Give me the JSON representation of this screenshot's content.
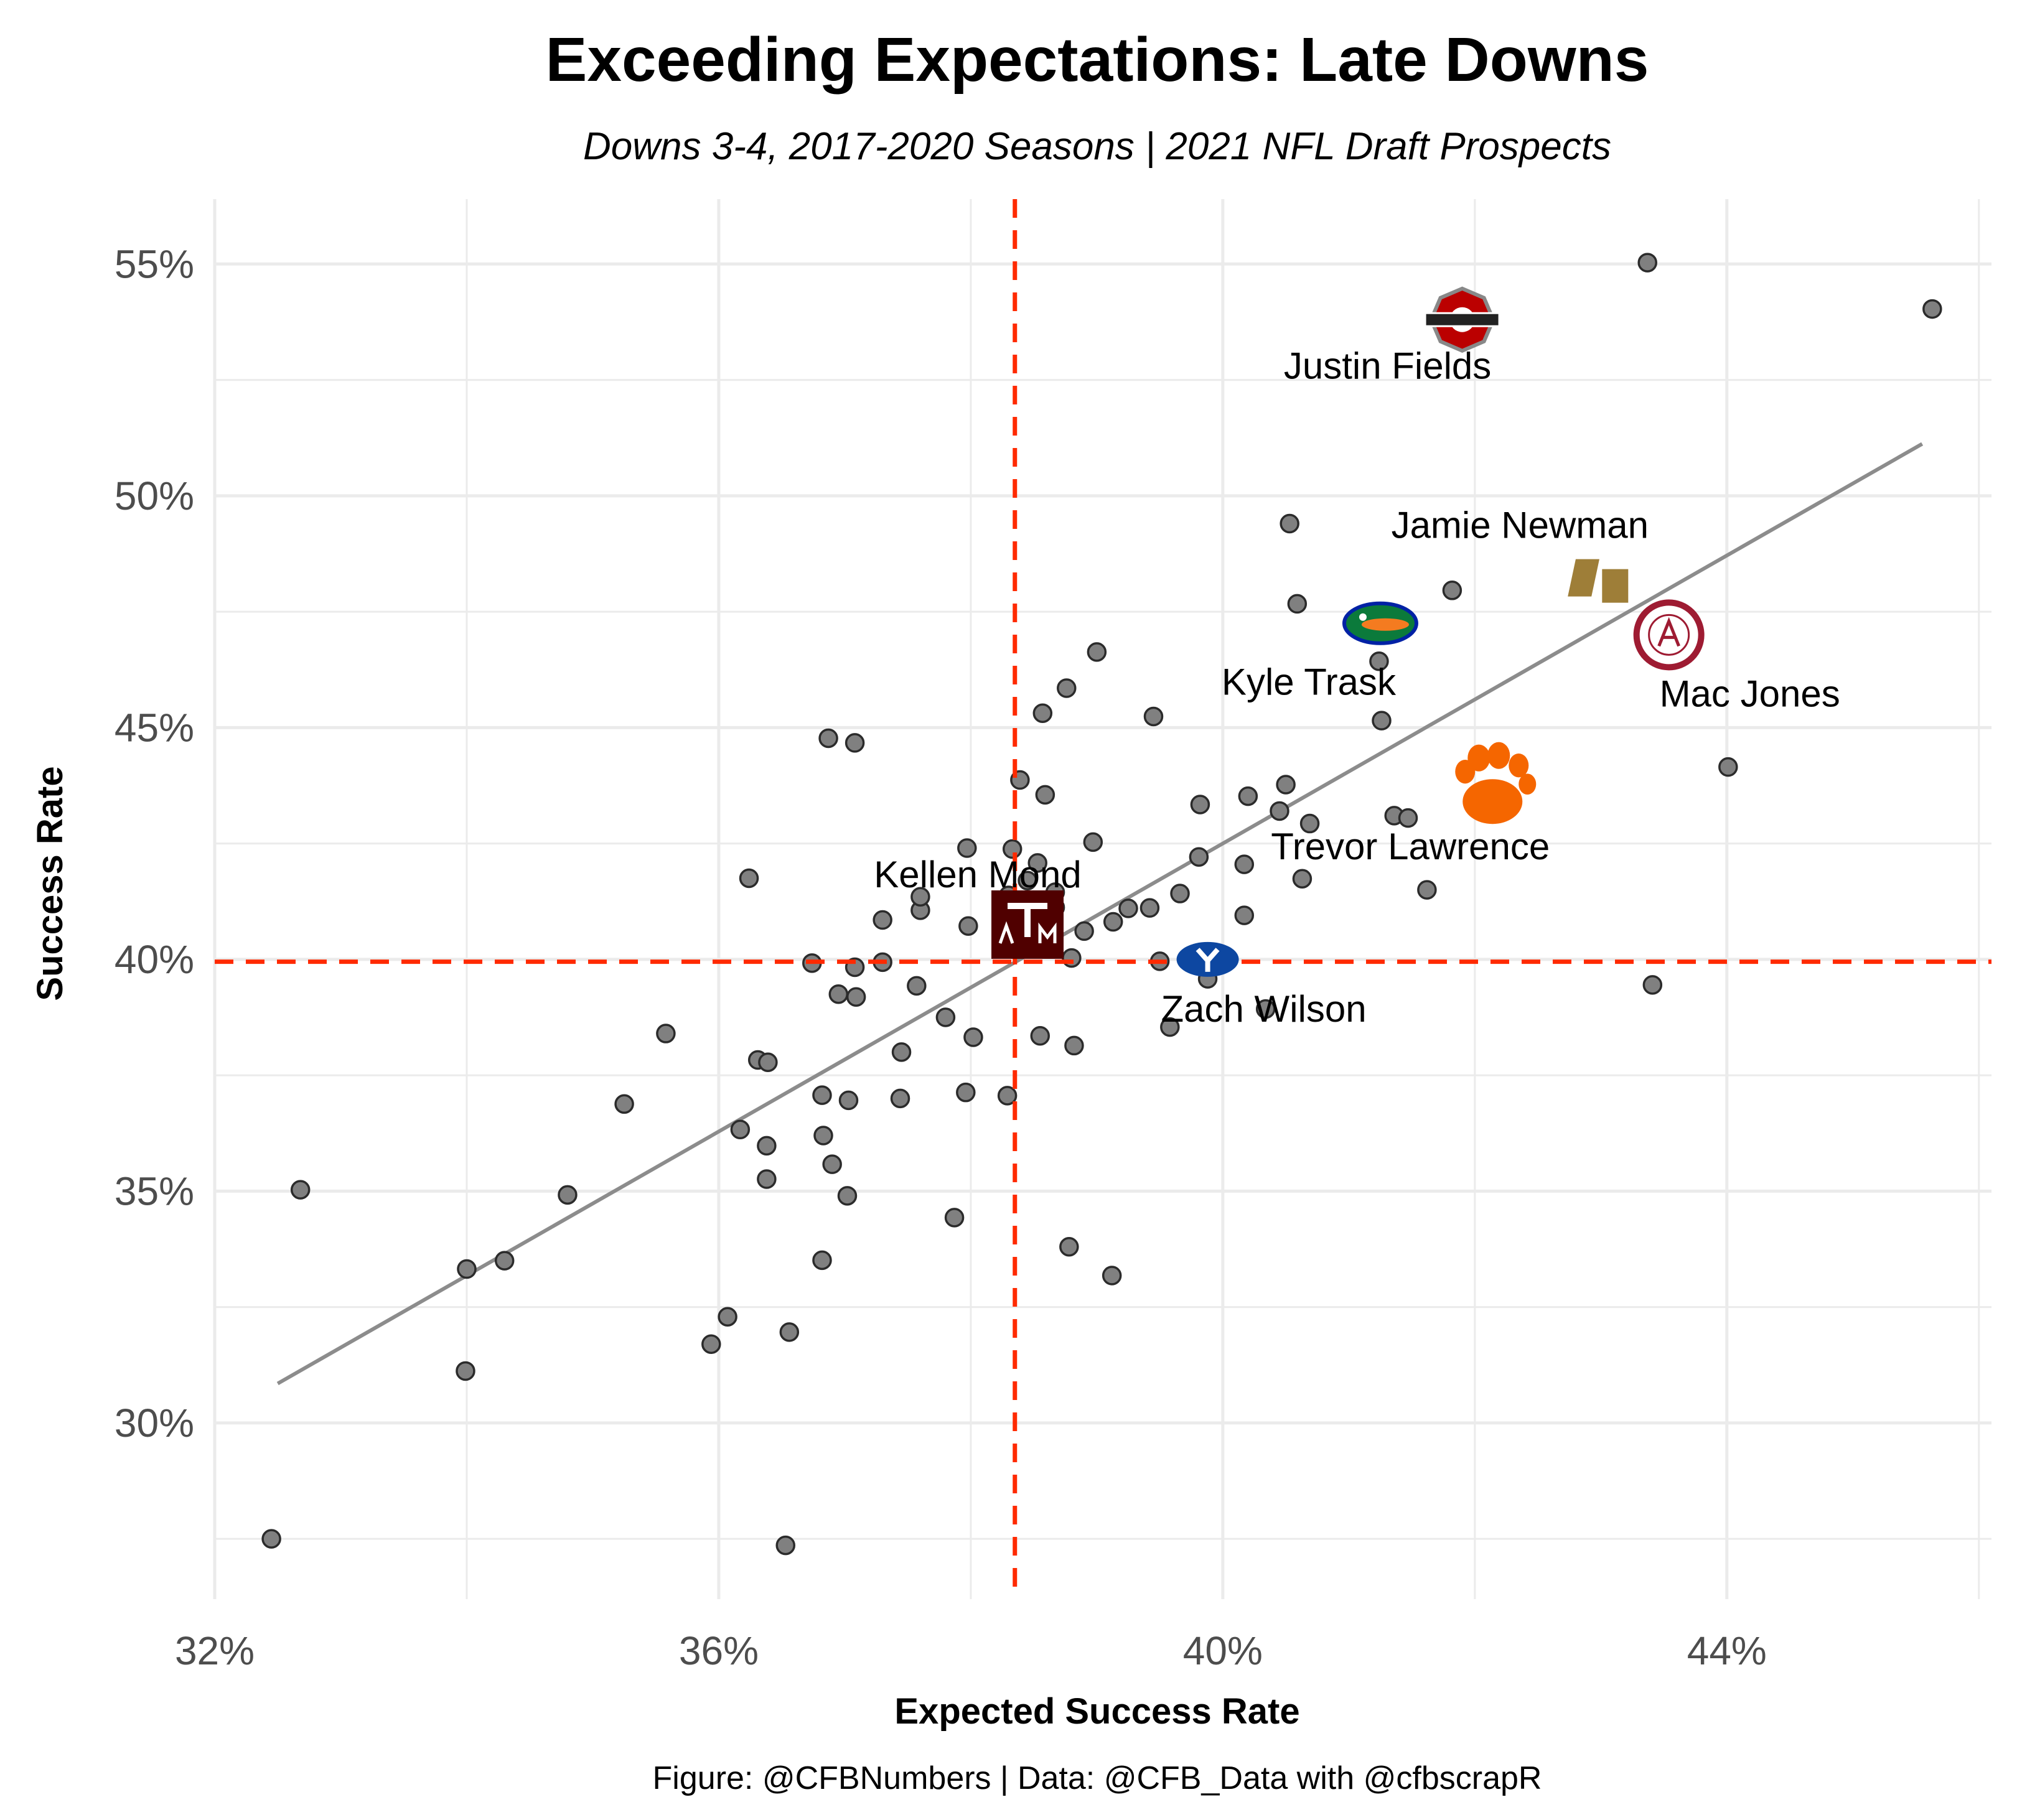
{
  "chart_data": {
    "type": "scatter",
    "title": "Exceeding Expectations: Late Downs",
    "subtitle": "Downs 3-4, 2017-2020 Seasons | 2021 NFL Draft Prospects",
    "xlabel": "Expected Success Rate",
    "ylabel": "Success Rate",
    "caption": "Figure: @CFBNumbers | Data: @CFB_Data with @cfbscrapR",
    "xlim": [
      0.32,
      0.461
    ],
    "ylim": [
      0.262,
      0.564
    ],
    "x_ticks": [
      0.32,
      0.36,
      0.4,
      0.44
    ],
    "x_tick_labels": [
      "32%",
      "36%",
      "40%",
      "44%"
    ],
    "y_ticks": [
      0.3,
      0.35,
      0.4,
      0.45,
      0.5,
      0.55
    ],
    "y_tick_labels": [
      "30%",
      "35%",
      "40%",
      "45%",
      "50%",
      "55%"
    ],
    "grid": true,
    "reference_lines": {
      "x": 0.3835,
      "y": 0.3995,
      "color": "#ff2a00",
      "style": "dashed"
    },
    "trend_line": {
      "x": [
        0.325,
        0.4555
      ],
      "y": [
        0.3085,
        0.5112
      ],
      "color": "#8c8c8c"
    },
    "points": [
      {
        "x": 0.3245,
        "y": 0.275
      },
      {
        "x": 0.3268,
        "y": 0.3503
      },
      {
        "x": 0.34,
        "y": 0.3332
      },
      {
        "x": 0.3399,
        "y": 0.3112
      },
      {
        "x": 0.343,
        "y": 0.335
      },
      {
        "x": 0.348,
        "y": 0.3492
      },
      {
        "x": 0.3525,
        "y": 0.3688
      },
      {
        "x": 0.3558,
        "y": 0.384
      },
      {
        "x": 0.3594,
        "y": 0.317
      },
      {
        "x": 0.3607,
        "y": 0.3229
      },
      {
        "x": 0.3617,
        "y": 0.3633
      },
      {
        "x": 0.3624,
        "y": 0.4175
      },
      {
        "x": 0.3631,
        "y": 0.3783
      },
      {
        "x": 0.3639,
        "y": 0.3778
      },
      {
        "x": 0.3638,
        "y": 0.3598
      },
      {
        "x": 0.3638,
        "y": 0.3526
      },
      {
        "x": 0.3653,
        "y": 0.2736
      },
      {
        "x": 0.3656,
        "y": 0.3196
      },
      {
        "x": 0.3674,
        "y": 0.3992
      },
      {
        "x": 0.3682,
        "y": 0.3707
      },
      {
        "x": 0.3683,
        "y": 0.362
      },
      {
        "x": 0.3682,
        "y": 0.3351
      },
      {
        "x": 0.3687,
        "y": 0.4477
      },
      {
        "x": 0.369,
        "y": 0.3558
      },
      {
        "x": 0.3695,
        "y": 0.3925
      },
      {
        "x": 0.3702,
        "y": 0.349
      },
      {
        "x": 0.3703,
        "y": 0.3696
      },
      {
        "x": 0.3708,
        "y": 0.3983
      },
      {
        "x": 0.3708,
        "y": 0.4467
      },
      {
        "x": 0.3709,
        "y": 0.3919
      },
      {
        "x": 0.373,
        "y": 0.4085
      },
      {
        "x": 0.373,
        "y": 0.3994
      },
      {
        "x": 0.3745,
        "y": 0.38
      },
      {
        "x": 0.3744,
        "y": 0.37
      },
      {
        "x": 0.3757,
        "y": 0.3943
      },
      {
        "x": 0.376,
        "y": 0.4106
      },
      {
        "x": 0.376,
        "y": 0.4135
      },
      {
        "x": 0.378,
        "y": 0.3875
      },
      {
        "x": 0.3787,
        "y": 0.3443
      },
      {
        "x": 0.3796,
        "y": 0.3713
      },
      {
        "x": 0.3798,
        "y": 0.4072
      },
      {
        "x": 0.3797,
        "y": 0.424
      },
      {
        "x": 0.3802,
        "y": 0.3832
      },
      {
        "x": 0.3829,
        "y": 0.3706
      },
      {
        "x": 0.383,
        "y": 0.4138
      },
      {
        "x": 0.3833,
        "y": 0.4238
      },
      {
        "x": 0.3839,
        "y": 0.4387
      },
      {
        "x": 0.3845,
        "y": 0.417
      },
      {
        "x": 0.3852,
        "y": 0.4081
      },
      {
        "x": 0.3853,
        "y": 0.4046
      },
      {
        "x": 0.3855,
        "y": 0.4024
      },
      {
        "x": 0.3853,
        "y": 0.4208
      },
      {
        "x": 0.3855,
        "y": 0.3835
      },
      {
        "x": 0.3857,
        "y": 0.4531
      },
      {
        "x": 0.3859,
        "y": 0.4355
      },
      {
        "x": 0.3867,
        "y": 0.4112
      },
      {
        "x": 0.3867,
        "y": 0.4145
      },
      {
        "x": 0.3876,
        "y": 0.4585
      },
      {
        "x": 0.3878,
        "y": 0.338
      },
      {
        "x": 0.388,
        "y": 0.4003
      },
      {
        "x": 0.3882,
        "y": 0.3814
      },
      {
        "x": 0.389,
        "y": 0.4061
      },
      {
        "x": 0.3897,
        "y": 0.4253
      },
      {
        "x": 0.39,
        "y": 0.4663
      },
      {
        "x": 0.3912,
        "y": 0.3318
      },
      {
        "x": 0.3913,
        "y": 0.4081
      },
      {
        "x": 0.3925,
        "y": 0.411
      },
      {
        "x": 0.3942,
        "y": 0.4111
      },
      {
        "x": 0.3945,
        "y": 0.4524
      },
      {
        "x": 0.395,
        "y": 0.3996
      },
      {
        "x": 0.3958,
        "y": 0.3854
      },
      {
        "x": 0.3966,
        "y": 0.4142
      },
      {
        "x": 0.3981,
        "y": 0.4221
      },
      {
        "x": 0.3982,
        "y": 0.4334
      },
      {
        "x": 0.3988,
        "y": 0.3958
      },
      {
        "x": 0.4017,
        "y": 0.4095
      },
      {
        "x": 0.4017,
        "y": 0.4205
      },
      {
        "x": 0.402,
        "y": 0.4352
      },
      {
        "x": 0.4034,
        "y": 0.3893
      },
      {
        "x": 0.4045,
        "y": 0.432
      },
      {
        "x": 0.405,
        "y": 0.4377
      },
      {
        "x": 0.4053,
        "y": 0.494
      },
      {
        "x": 0.4059,
        "y": 0.4767
      },
      {
        "x": 0.4063,
        "y": 0.4174
      },
      {
        "x": 0.4069,
        "y": 0.4293
      },
      {
        "x": 0.4124,
        "y": 0.4643
      },
      {
        "x": 0.4126,
        "y": 0.4515
      },
      {
        "x": 0.4136,
        "y": 0.431
      },
      {
        "x": 0.4147,
        "y": 0.4305
      },
      {
        "x": 0.4162,
        "y": 0.415
      },
      {
        "x": 0.4182,
        "y": 0.4796
      },
      {
        "x": 0.4337,
        "y": 0.5503
      },
      {
        "x": 0.4341,
        "y": 0.3945
      },
      {
        "x": 0.4401,
        "y": 0.4415
      },
      {
        "x": 0.4563,
        "y": 0.5403
      }
    ],
    "highlighted": [
      {
        "player": "Justin Fields",
        "school": "Ohio State",
        "x": 0.419,
        "y": 0.538,
        "color": "#bb0000",
        "icon": "ohio-state-logo",
        "label_pos": "below"
      },
      {
        "player": "Jamie Newman",
        "school": "Wake Forest",
        "x": 0.43,
        "y": 0.4815,
        "color": "#9e7e38",
        "icon": "wake-forest-logo",
        "label_pos": "above"
      },
      {
        "player": "Mac Jones",
        "school": "Alabama",
        "x": 0.4354,
        "y": 0.47,
        "color": "#9e1b32",
        "icon": "alabama-logo",
        "label_pos": "below"
      },
      {
        "player": "Kyle Trask",
        "school": "Florida",
        "x": 0.4125,
        "y": 0.4725,
        "color": "#0021a5",
        "icon": "florida-gator-logo",
        "label_pos": "below-left"
      },
      {
        "player": "Trevor Lawrence",
        "school": "Clemson",
        "x": 0.4218,
        "y": 0.437,
        "color": "#f56600",
        "icon": "clemson-paw-logo",
        "label_pos": "below"
      },
      {
        "player": "Kellen Mond",
        "school": "Texas A&M",
        "x": 0.3845,
        "y": 0.4075,
        "color": "#500000",
        "icon": "texas-am-logo",
        "label_pos": "above"
      },
      {
        "player": "Zach Wilson",
        "school": "BYU",
        "x": 0.3988,
        "y": 0.4,
        "color": "#002e5d",
        "icon": "byu-logo",
        "label_pos": "below"
      }
    ]
  }
}
